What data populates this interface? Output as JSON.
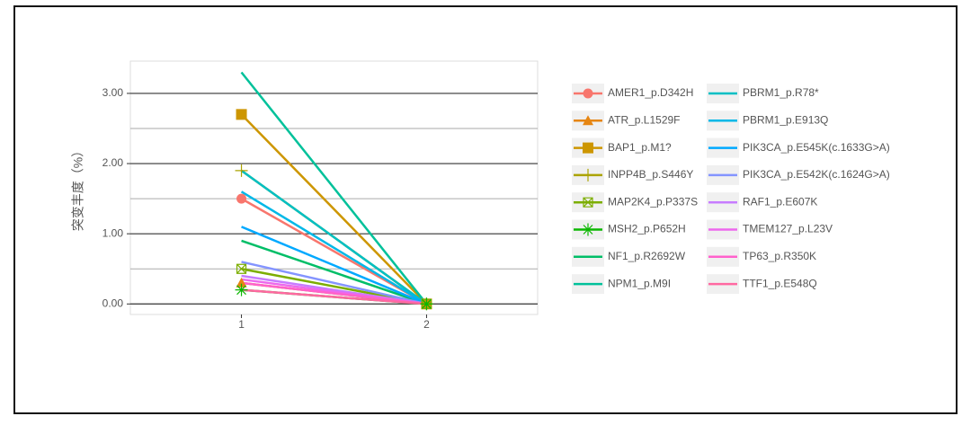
{
  "chart_data": {
    "type": "line",
    "y_label": "突变丰度（%）",
    "x": [
      1,
      2
    ],
    "xlim": [
      0.4,
      2.6
    ],
    "xticks": [
      1,
      2
    ],
    "ylim": [
      -0.15,
      3.46
    ],
    "yticks": [
      {
        "value": 0,
        "label": "0.00"
      },
      {
        "value": 1,
        "label": "1.00"
      },
      {
        "value": 2,
        "label": "2.00"
      },
      {
        "value": 3,
        "label": "3.00"
      }
    ],
    "minor_yticks": [
      0.5,
      1.5,
      2.5
    ],
    "grid": true,
    "series": [
      {
        "name": "AMER1_p.D342H",
        "color": "#F8766D",
        "marker": "circle",
        "values": [
          1.5,
          0
        ]
      },
      {
        "name": "ATR_p.L1529F",
        "color": "#E68613",
        "marker": "triangle",
        "values": [
          0.3,
          0
        ]
      },
      {
        "name": "BAP1_p.M1?",
        "color": "#CD9600",
        "marker": "square",
        "values": [
          2.7,
          0
        ]
      },
      {
        "name": "INPP4B_p.S446Y",
        "color": "#ABA300",
        "marker": "plus",
        "values": [
          1.9,
          0
        ]
      },
      {
        "name": "MAP2K4_p.P337S",
        "color": "#7CAE00",
        "marker": "boxcross",
        "values": [
          0.5,
          0
        ]
      },
      {
        "name": "MSH2_p.P652H",
        "color": "#0CB702",
        "marker": "star",
        "values": [
          0.2,
          0
        ]
      },
      {
        "name": "NF1_p.R2692W",
        "color": "#00BE67",
        "values": [
          0.9,
          0
        ]
      },
      {
        "name": "NPM1_p.M9I",
        "color": "#00C19A",
        "values": [
          3.3,
          0
        ]
      },
      {
        "name": "PBRM1_p.R78*",
        "color": "#00BFC4",
        "values": [
          1.9,
          0
        ]
      },
      {
        "name": "PBRM1_p.E913Q",
        "color": "#00B8E7",
        "values": [
          1.6,
          0
        ]
      },
      {
        "name": "PIK3CA_p.E545K(c.1633G>A)",
        "color": "#00A9FF",
        "values": [
          1.1,
          0
        ]
      },
      {
        "name": "PIK3CA_p.E542K(c.1624G>A)",
        "color": "#8494FF",
        "values": [
          0.6,
          0
        ]
      },
      {
        "name": "RAF1_p.E607K",
        "color": "#C77CFF",
        "values": [
          0.4,
          0
        ]
      },
      {
        "name": "TMEM127_p.L23V",
        "color": "#ED68ED",
        "values": [
          0.35,
          0
        ]
      },
      {
        "name": "TP63_p.R350K",
        "color": "#FF61CC",
        "values": [
          0.3,
          0
        ]
      },
      {
        "name": "TTF1_p.E548Q",
        "color": "#FF68A1",
        "values": [
          0.2,
          0
        ]
      }
    ]
  }
}
